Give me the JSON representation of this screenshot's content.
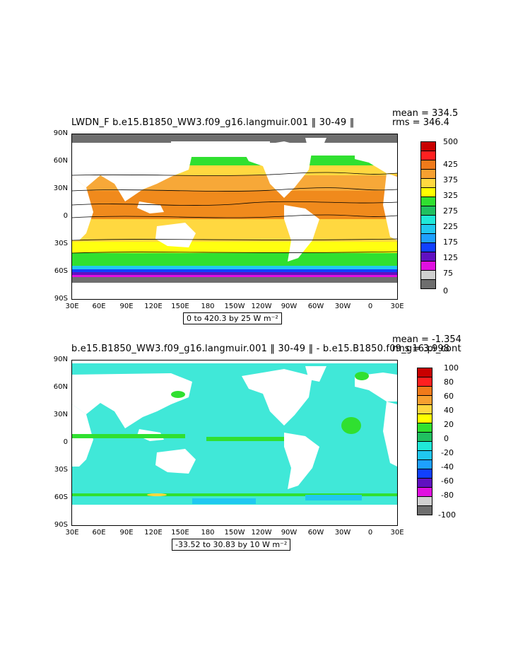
{
  "panels": [
    {
      "title": "LWDN_F  b.e15.B1850_WW3.f09_g16.langmuir.001 ‖ 30-49 ‖",
      "stats": {
        "mean": "mean = 334.5",
        "rms": "rms = 346.4"
      },
      "range": "0 to 420.3 by 25  W m⁻²",
      "lat_labels": [
        "90N",
        "60N",
        "30N",
        "0",
        "30S",
        "60S",
        "90S"
      ],
      "lon_labels": [
        "30E",
        "60E",
        "90E",
        "120E",
        "150E",
        "180",
        "150W",
        "120W",
        "90W",
        "60W",
        "30W",
        "0",
        "30E"
      ],
      "colorbar": {
        "labels": [
          "500",
          "425",
          "375",
          "325",
          "275",
          "225",
          "175",
          "125",
          "75",
          "0"
        ],
        "colors": [
          "#c80000",
          "#ff2020",
          "#f07a1a",
          "#f7a030",
          "#ffd840",
          "#ffff00",
          "#30e030",
          "#20c060",
          "#20e8d8",
          "#20c8f0",
          "#1ea0ff",
          "#1040ff",
          "#6010c0",
          "#e010e0",
          "#d0d0d0",
          "#6e6e6e"
        ]
      },
      "fields": {
        "ocean_warm": "#f08a1c",
        "ocean_mid": "#f7a838",
        "ocean_cool": "#ffd840",
        "ocean_yellow": "#ffff10",
        "ocean_green": "#30e030",
        "ice": "#6e6e6e"
      }
    },
    {
      "title": "b.e15.B1850_WW3.f09_g16.langmuir.001 ‖ 30-49 ‖ - b.e15.B1850.f09_g16.pi_cont",
      "stats": {
        "mean": "mean = -1.354",
        "rms": "rms = 3.998"
      },
      "range": "-33.52 to 30.83 by 10  W m⁻²",
      "lat_labels": [
        "90N",
        "60N",
        "30N",
        "0",
        "30S",
        "60S",
        "90S"
      ],
      "lon_labels": [
        "30E",
        "60E",
        "90E",
        "120E",
        "150E",
        "180",
        "150W",
        "120W",
        "90W",
        "60W",
        "30W",
        "0",
        "30E"
      ],
      "colorbar": {
        "labels": [
          "100",
          "80",
          "60",
          "40",
          "20",
          "0",
          "-20",
          "-40",
          "-60",
          "-80",
          "-100"
        ],
        "colors": [
          "#c80000",
          "#ff2020",
          "#f07a1a",
          "#f7a030",
          "#ffd840",
          "#ffff00",
          "#30e030",
          "#20c060",
          "#20e8d8",
          "#20c8f0",
          "#1ea0ff",
          "#1040ff",
          "#6010c0",
          "#e010e0",
          "#d0d0d0",
          "#6e6e6e"
        ]
      },
      "fields": {
        "ocean_base": "#40e8d8",
        "ocean_green": "#30e030",
        "ocean_cyan": "#20c8f0"
      }
    }
  ]
}
